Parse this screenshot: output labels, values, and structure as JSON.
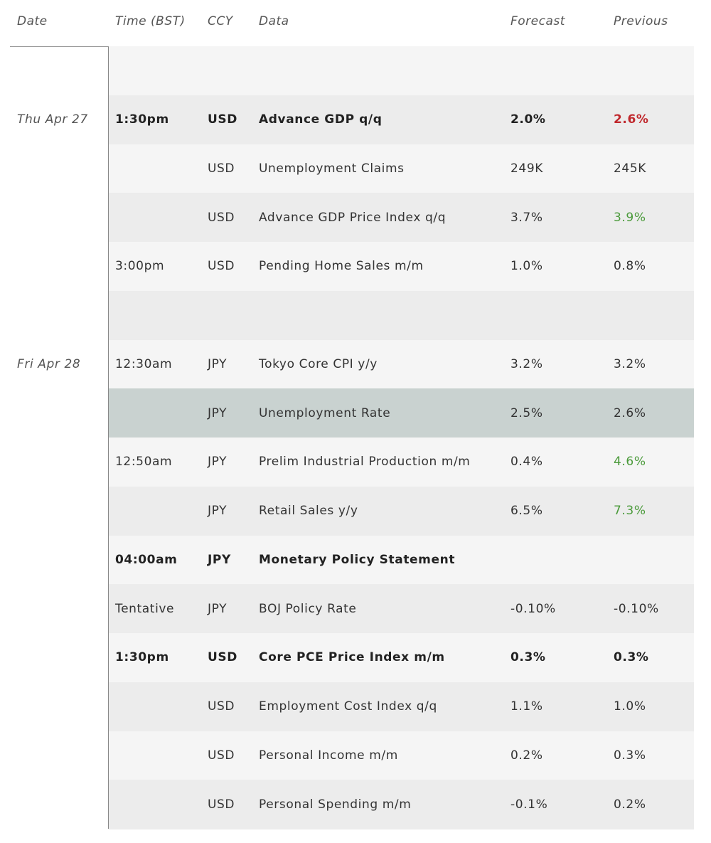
{
  "table": {
    "columns": [
      "Date",
      "Time (BST)",
      "CCY",
      "Data",
      "Forecast",
      "Previous"
    ],
    "rows": [
      {},
      {
        "date": "Thu Apr 27",
        "time": "1:30pm",
        "ccy": "USD",
        "data": "Advance GDP q/q",
        "forecast": "2.0%",
        "previous": "2.6%",
        "bold": true,
        "previous_color": "#c0282d"
      },
      {
        "ccy": "USD",
        "data": "Unemployment Claims",
        "forecast": "249K",
        "previous": "245K"
      },
      {
        "ccy": "USD",
        "data": "Advance GDP Price Index q/q",
        "forecast": "3.7%",
        "previous": "3.9%",
        "previous_color": "#4a9a3a"
      },
      {
        "time": "3:00pm",
        "ccy": "USD",
        "data": "Pending Home Sales m/m",
        "forecast": "1.0%",
        "previous": "0.8%"
      },
      {},
      {
        "date": "Fri Apr 28",
        "time": "12:30am",
        "ccy": "JPY",
        "data": "Tokyo Core CPI y/y",
        "forecast": "3.2%",
        "previous": "3.2%"
      },
      {
        "ccy": "JPY",
        "data": "Unemployment Rate",
        "forecast": "2.5%",
        "previous": "2.6%",
        "highlight": true
      },
      {
        "time": "12:50am",
        "ccy": "JPY",
        "data": "Prelim Industrial Production m/m",
        "forecast": "0.4%",
        "previous": "4.6%",
        "previous_color": "#4a9a3a"
      },
      {
        "ccy": "JPY",
        "data": "Retail Sales y/y",
        "forecast": "6.5%",
        "previous": "7.3%",
        "previous_color": "#4a9a3a"
      },
      {
        "time": "04:00am",
        "ccy": "JPY",
        "data": "Monetary Policy Statement",
        "bold": true
      },
      {
        "time": "Tentative",
        "ccy": "JPY",
        "data": "BOJ Policy Rate",
        "forecast": "-0.10%",
        "previous": "-0.10%"
      },
      {
        "time": "1:30pm",
        "ccy": "USD",
        "data": "Core PCE Price Index m/m",
        "forecast": "0.3%",
        "previous": "0.3%",
        "bold": true
      },
      {
        "ccy": "USD",
        "data": "Employment Cost Index q/q",
        "forecast": "1.1%",
        "previous": "1.0%"
      },
      {
        "ccy": "USD",
        "data": "Personal Income m/m",
        "forecast": "0.2%",
        "previous": "0.3%"
      },
      {
        "ccy": "USD",
        "data": "Personal Spending m/m",
        "forecast": "-0.1%",
        "previous": "0.2%"
      }
    ]
  }
}
